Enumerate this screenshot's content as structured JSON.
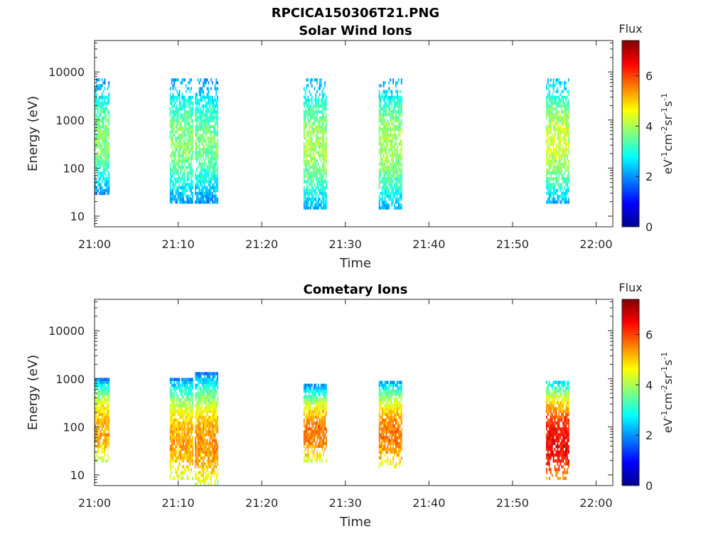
{
  "figure": {
    "title": "RPCICA150306T21.PNG"
  },
  "colorbar": {
    "label": "Flux",
    "unit_base": [
      "eV",
      "cm",
      "sr",
      "s"
    ],
    "unit_exp": [
      "-1",
      "-2",
      "-1",
      "-1"
    ],
    "ticks": [
      "0",
      "2",
      "4",
      "6"
    ],
    "range": [
      0,
      7.4
    ],
    "colormap": "jet"
  },
  "chart_data": [
    {
      "type": "heatmap",
      "title": "Solar Wind Ions",
      "xlabel": "Time",
      "ylabel": "Energy (eV)",
      "xticks": [
        "21:00",
        "21:10",
        "21:20",
        "21:30",
        "21:40",
        "21:50",
        "22:00"
      ],
      "xlim_minutes": [
        0,
        62
      ],
      "yticks": [
        "10",
        "100",
        "1000",
        "10000"
      ],
      "ylim": [
        6,
        45000
      ],
      "yscale": "log",
      "bursts": [
        {
          "start": "21:00",
          "end": "21:01",
          "emin": 30,
          "emax": 7000,
          "peak_flux": 3.8
        },
        {
          "start": "21:09",
          "end": "21:11",
          "emin": 20,
          "emax": 7000,
          "peak_flux": 3.8
        },
        {
          "start": "21:12",
          "end": "21:14",
          "emin": 20,
          "emax": 7000,
          "peak_flux": 3.6
        },
        {
          "start": "21:25",
          "end": "21:27",
          "emin": 14,
          "emax": 7000,
          "peak_flux": 4.0
        },
        {
          "start": "21:34",
          "end": "21:36",
          "emin": 15,
          "emax": 7000,
          "peak_flux": 4.0
        },
        {
          "start": "21:54",
          "end": "21:56",
          "emin": 20,
          "emax": 7000,
          "peak_flux": 4.3
        }
      ]
    },
    {
      "type": "heatmap",
      "title": "Cometary Ions",
      "xlabel": "Time",
      "ylabel": "Energy (eV)",
      "xticks": [
        "21:00",
        "21:10",
        "21:20",
        "21:30",
        "21:40",
        "21:50",
        "22:00"
      ],
      "xlim_minutes": [
        0,
        62
      ],
      "yticks": [
        "10",
        "100",
        "1000",
        "10000"
      ],
      "ylim": [
        6,
        45000
      ],
      "yscale": "log",
      "bursts": [
        {
          "start": "21:00",
          "end": "21:01",
          "emin": 20,
          "emax": 1000,
          "peak_flux": 5.3
        },
        {
          "start": "21:09",
          "end": "21:11",
          "emin": 8,
          "emax": 1000,
          "peak_flux": 5.3
        },
        {
          "start": "21:12",
          "end": "21:14",
          "emin": 6,
          "emax": 1200,
          "peak_flux": 5.4
        },
        {
          "start": "21:25",
          "end": "21:27",
          "emin": 20,
          "emax": 700,
          "peak_flux": 5.6
        },
        {
          "start": "21:34",
          "end": "21:36",
          "emin": 15,
          "emax": 900,
          "peak_flux": 5.6
        },
        {
          "start": "21:54",
          "end": "21:56",
          "emin": 8,
          "emax": 900,
          "peak_flux": 6.6
        }
      ]
    }
  ]
}
